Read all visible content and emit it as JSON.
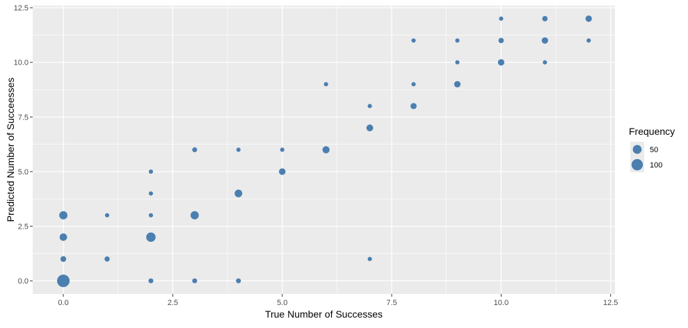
{
  "chart_data": {
    "type": "scatter",
    "title": "",
    "xlabel": "True Number of Successes",
    "ylabel": "Predicted Number of Succeesses",
    "xlim": [
      -0.7,
      12.6
    ],
    "ylim": [
      -0.6,
      12.6
    ],
    "grid": true,
    "point_color": "#4a7fb0",
    "panel_background": "#ebebeb",
    "grid_color": "#ffffff",
    "xticks": [
      0.0,
      2.5,
      5.0,
      7.5,
      10.0,
      12.5
    ],
    "xtick_labels": [
      "0.0",
      "2.5",
      "5.0",
      "7.5",
      "10.0",
      "12.5"
    ],
    "yticks": [
      0.0,
      2.5,
      5.0,
      7.5,
      10.0,
      12.5
    ],
    "ytick_labels": [
      "0.0",
      "2.5",
      "5.0",
      "7.5",
      "10.0",
      "12.5"
    ],
    "legend": {
      "title": "Frequency",
      "position": "right",
      "entries": [
        {
          "label": "50",
          "value": 50
        },
        {
          "label": "100",
          "value": 100
        }
      ]
    },
    "points": [
      {
        "x": 0,
        "y": 0,
        "frequency": 130
      },
      {
        "x": 0,
        "y": 1,
        "frequency": 12
      },
      {
        "x": 0,
        "y": 2,
        "frequency": 30
      },
      {
        "x": 0,
        "y": 3,
        "frequency": 40
      },
      {
        "x": 1,
        "y": 1,
        "frequency": 8
      },
      {
        "x": 1,
        "y": 3,
        "frequency": 3
      },
      {
        "x": 2,
        "y": 0,
        "frequency": 6
      },
      {
        "x": 2,
        "y": 2,
        "frequency": 60
      },
      {
        "x": 2,
        "y": 3,
        "frequency": 3
      },
      {
        "x": 2,
        "y": 4,
        "frequency": 3
      },
      {
        "x": 2,
        "y": 5,
        "frequency": 3
      },
      {
        "x": 3,
        "y": 0,
        "frequency": 6
      },
      {
        "x": 3,
        "y": 3,
        "frequency": 40
      },
      {
        "x": 3,
        "y": 6,
        "frequency": 6
      },
      {
        "x": 4,
        "y": 0,
        "frequency": 6
      },
      {
        "x": 4,
        "y": 4,
        "frequency": 32
      },
      {
        "x": 4,
        "y": 6,
        "frequency": 3
      },
      {
        "x": 5,
        "y": 5,
        "frequency": 20
      },
      {
        "x": 5,
        "y": 6,
        "frequency": 3
      },
      {
        "x": 6,
        "y": 6,
        "frequency": 26
      },
      {
        "x": 6,
        "y": 9,
        "frequency": 3
      },
      {
        "x": 7,
        "y": 1,
        "frequency": 3
      },
      {
        "x": 7,
        "y": 7,
        "frequency": 22
      },
      {
        "x": 7,
        "y": 8,
        "frequency": 3
      },
      {
        "x": 8,
        "y": 8,
        "frequency": 15
      },
      {
        "x": 8,
        "y": 9,
        "frequency": 3
      },
      {
        "x": 8,
        "y": 11,
        "frequency": 3
      },
      {
        "x": 9,
        "y": 9,
        "frequency": 18
      },
      {
        "x": 9,
        "y": 10,
        "frequency": 3
      },
      {
        "x": 9,
        "y": 11,
        "frequency": 3
      },
      {
        "x": 10,
        "y": 10,
        "frequency": 18
      },
      {
        "x": 10,
        "y": 11,
        "frequency": 9
      },
      {
        "x": 10,
        "y": 12,
        "frequency": 3
      },
      {
        "x": 11,
        "y": 10,
        "frequency": 3
      },
      {
        "x": 11,
        "y": 11,
        "frequency": 18
      },
      {
        "x": 11,
        "y": 12,
        "frequency": 9
      },
      {
        "x": 12,
        "y": 11,
        "frequency": 3
      },
      {
        "x": 12,
        "y": 12,
        "frequency": 18
      }
    ]
  }
}
